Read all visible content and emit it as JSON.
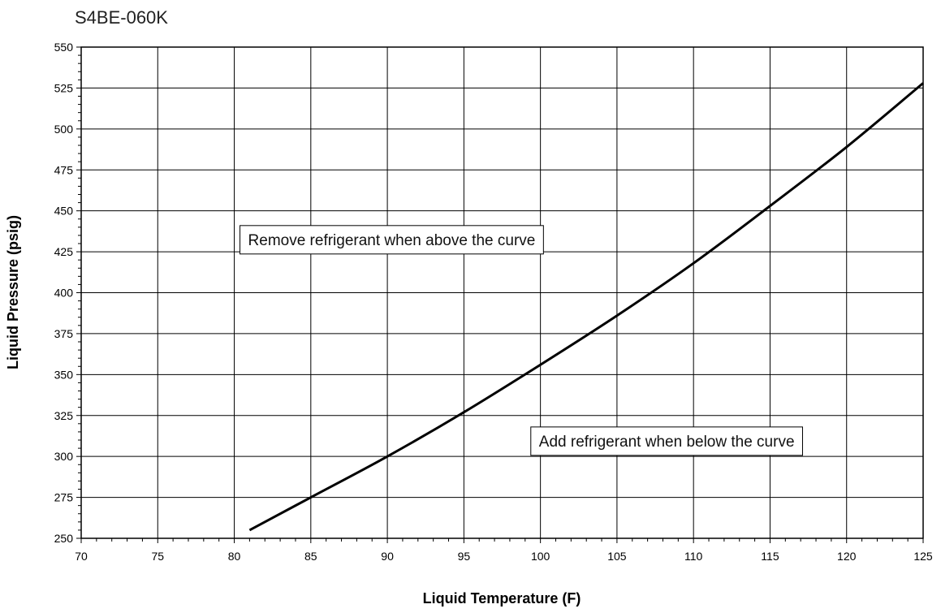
{
  "chart_data": {
    "type": "line",
    "title": "S4BE-060K",
    "xlabel": "Liquid Temperature (F)",
    "ylabel": "Liquid Pressure (psig)",
    "xlim": [
      70,
      125
    ],
    "ylim": [
      250,
      550
    ],
    "xticks": [
      70,
      75,
      80,
      85,
      90,
      95,
      100,
      105,
      110,
      115,
      120,
      125
    ],
    "yticks": [
      250,
      275,
      300,
      325,
      350,
      375,
      400,
      425,
      450,
      475,
      500,
      525,
      550
    ],
    "grid": true,
    "series": [
      {
        "x": [
          81,
          85,
          90,
          95,
          100,
          105,
          110,
          115,
          120,
          125
        ],
        "y": [
          255,
          275,
          300,
          327,
          356,
          386,
          418,
          453,
          489,
          528
        ]
      }
    ],
    "annotations": [
      {
        "text": "Remove refrigerant when above the curve",
        "x": 80,
        "y": 441
      },
      {
        "text": "Add refrigerant when below the curve",
        "x": 99,
        "y": 318
      }
    ],
    "colors": {
      "line": "#000000",
      "grid": "#000000",
      "background": "#ffffff"
    }
  }
}
